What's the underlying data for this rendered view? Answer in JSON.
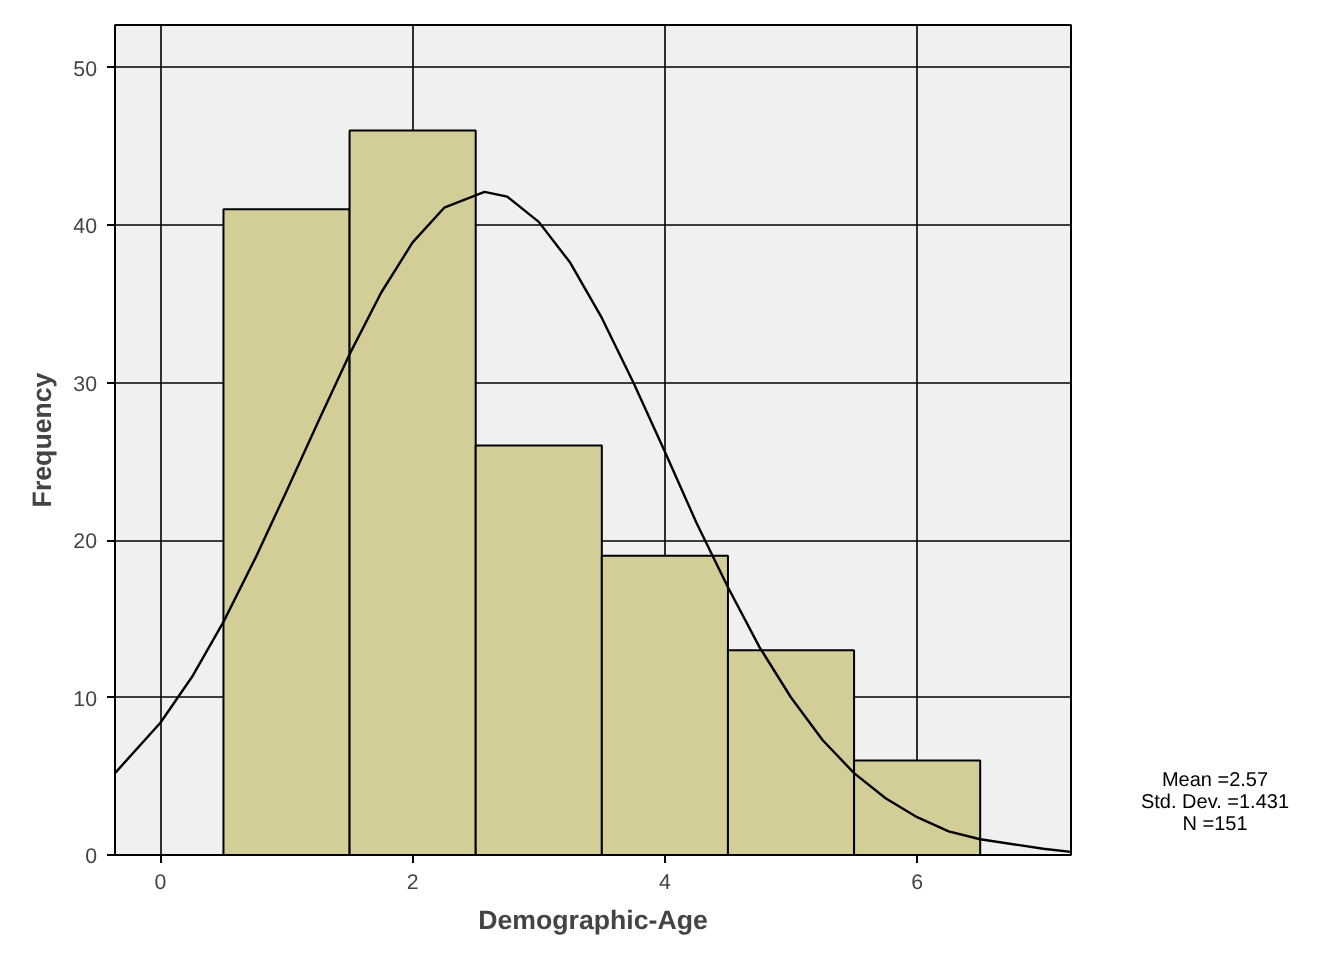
{
  "chart_data": {
    "type": "histogram",
    "xlabel": "Demographic-Age",
    "ylabel": "Frequency",
    "bins": [
      0.5,
      1.5,
      2.5,
      3.5,
      4.5,
      5.5,
      6.5
    ],
    "values": [
      41,
      46,
      26,
      19,
      13,
      6
    ],
    "color": "#d3ce97",
    "series": [
      {
        "type": "line",
        "color": "#000000",
        "x": [
          -0.36,
          0,
          0.25,
          0.5,
          0.75,
          1,
          1.25,
          1.5,
          1.75,
          2,
          2.25,
          2.57,
          2.75,
          3,
          3.25,
          3.5,
          3.75,
          4,
          4.25,
          4.5,
          4.75,
          5,
          5.25,
          5.5,
          5.75,
          6,
          6.25,
          6.5,
          7,
          7.22
        ],
        "values": [
          5.2,
          8.4,
          11.3,
          14.8,
          18.8,
          23.1,
          27.5,
          31.8,
          35.7,
          38.9,
          41.1,
          42.1,
          41.8,
          40.2,
          37.6,
          34.1,
          30.0,
          25.6,
          21.1,
          17.0,
          13.2,
          10.0,
          7.3,
          5.2,
          3.6,
          2.4,
          1.5,
          1.0,
          0.4,
          0.2
        ]
      }
    ],
    "xlim": [
      -0.36,
      7.22
    ],
    "ylim": [
      0,
      52.7
    ],
    "xticks": [
      0,
      2,
      4,
      6
    ],
    "yticks": [
      0,
      10,
      20,
      30,
      40,
      50
    ],
    "grid": true,
    "marker": "none",
    "line_style": "solid",
    "annotations": [
      "Mean =2.57",
      "Std. Dev. =1.431",
      "N =151"
    ]
  }
}
